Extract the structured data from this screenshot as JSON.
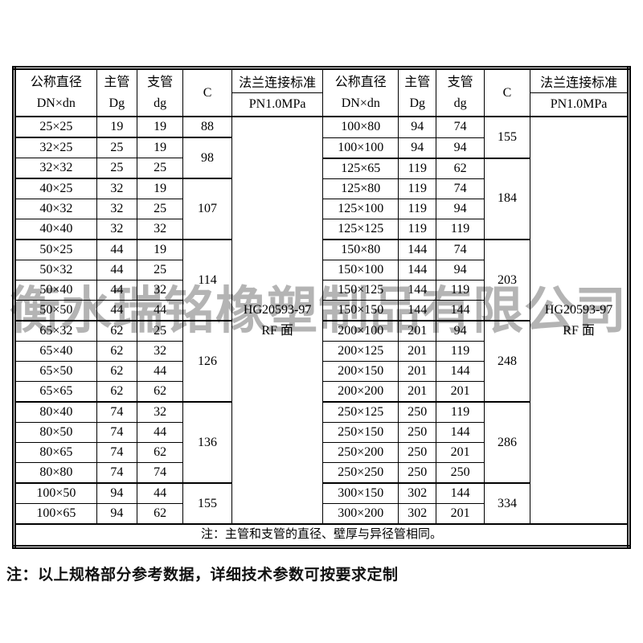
{
  "watermark": "衡水瑞铭橡塑制品有限公司",
  "footer_note": "注：以上规格部分参考数据，详细技术参数可按要求定制",
  "table": {
    "note": "注：主管和支管的直径、壁厚与异径管相同。",
    "header": {
      "dn_title": "公称直径",
      "dn_sub": "DN×dn",
      "main_title": "主管",
      "main_sub": "Dg",
      "branch_title": "支管",
      "branch_sub": "dg",
      "c_title": "C",
      "flange_title": "法兰连接标准",
      "flange_sub": "PN1.0MPa"
    },
    "flange_standard": [
      "HG20593-97",
      "RF 面"
    ],
    "halves": [
      {
        "rows": [
          {
            "dn": "25×25",
            "Dg": "19",
            "dg": "19"
          },
          {
            "dn": "32×25",
            "Dg": "25",
            "dg": "19"
          },
          {
            "dn": "32×32",
            "Dg": "25",
            "dg": "25"
          },
          {
            "dn": "40×25",
            "Dg": "32",
            "dg": "19"
          },
          {
            "dn": "40×32",
            "Dg": "32",
            "dg": "25"
          },
          {
            "dn": "40×40",
            "Dg": "32",
            "dg": "32"
          },
          {
            "dn": "50×25",
            "Dg": "44",
            "dg": "19"
          },
          {
            "dn": "50×32",
            "Dg": "44",
            "dg": "25"
          },
          {
            "dn": "50×40",
            "Dg": "44",
            "dg": "32"
          },
          {
            "dn": "50×50",
            "Dg": "44",
            "dg": "44"
          },
          {
            "dn": "65×32",
            "Dg": "62",
            "dg": "25"
          },
          {
            "dn": "65×40",
            "Dg": "62",
            "dg": "32"
          },
          {
            "dn": "65×50",
            "Dg": "62",
            "dg": "44"
          },
          {
            "dn": "65×65",
            "Dg": "62",
            "dg": "62"
          },
          {
            "dn": "80×40",
            "Dg": "74",
            "dg": "32"
          },
          {
            "dn": "80×50",
            "Dg": "74",
            "dg": "44"
          },
          {
            "dn": "80×65",
            "Dg": "74",
            "dg": "62"
          },
          {
            "dn": "80×80",
            "Dg": "74",
            "dg": "74"
          },
          {
            "dn": "100×50",
            "Dg": "94",
            "dg": "44"
          },
          {
            "dn": "100×65",
            "Dg": "94",
            "dg": "62"
          }
        ],
        "c_groups": [
          {
            "value": "88",
            "span": 1
          },
          {
            "value": "98",
            "span": 2
          },
          {
            "value": "107",
            "span": 3
          },
          {
            "value": "114",
            "span": 4
          },
          {
            "value": "126",
            "span": 4
          },
          {
            "value": "136",
            "span": 4
          },
          {
            "value": "155",
            "span": 2
          }
        ]
      },
      {
        "rows": [
          {
            "dn": "100×80",
            "Dg": "94",
            "dg": "74"
          },
          {
            "dn": "100×100",
            "Dg": "94",
            "dg": "94"
          },
          {
            "dn": "125×65",
            "Dg": "119",
            "dg": "62"
          },
          {
            "dn": "125×80",
            "Dg": "119",
            "dg": "74"
          },
          {
            "dn": "125×100",
            "Dg": "119",
            "dg": "94"
          },
          {
            "dn": "125×125",
            "Dg": "119",
            "dg": "119"
          },
          {
            "dn": "150×80",
            "Dg": "144",
            "dg": "74"
          },
          {
            "dn": "150×100",
            "Dg": "144",
            "dg": "94"
          },
          {
            "dn": "150×125",
            "Dg": "144",
            "dg": "119"
          },
          {
            "dn": "150×150",
            "Dg": "144",
            "dg": "144"
          },
          {
            "dn": "200×100",
            "Dg": "201",
            "dg": "94"
          },
          {
            "dn": "200×125",
            "Dg": "201",
            "dg": "119"
          },
          {
            "dn": "200×150",
            "Dg": "201",
            "dg": "144"
          },
          {
            "dn": "200×200",
            "Dg": "201",
            "dg": "201"
          },
          {
            "dn": "250×125",
            "Dg": "250",
            "dg": "119"
          },
          {
            "dn": "250×150",
            "Dg": "250",
            "dg": "144"
          },
          {
            "dn": "250×200",
            "Dg": "250",
            "dg": "201"
          },
          {
            "dn": "250×250",
            "Dg": "250",
            "dg": "250"
          },
          {
            "dn": "300×150",
            "Dg": "302",
            "dg": "144"
          },
          {
            "dn": "300×200",
            "Dg": "302",
            "dg": "201"
          }
        ],
        "c_groups": [
          {
            "value": "155",
            "span": 2
          },
          {
            "value": "184",
            "span": 4
          },
          {
            "value": "203",
            "span": 4
          },
          {
            "value": "248",
            "span": 4
          },
          {
            "value": "286",
            "span": 4
          },
          {
            "value": "334",
            "span": 2
          }
        ]
      }
    ]
  }
}
